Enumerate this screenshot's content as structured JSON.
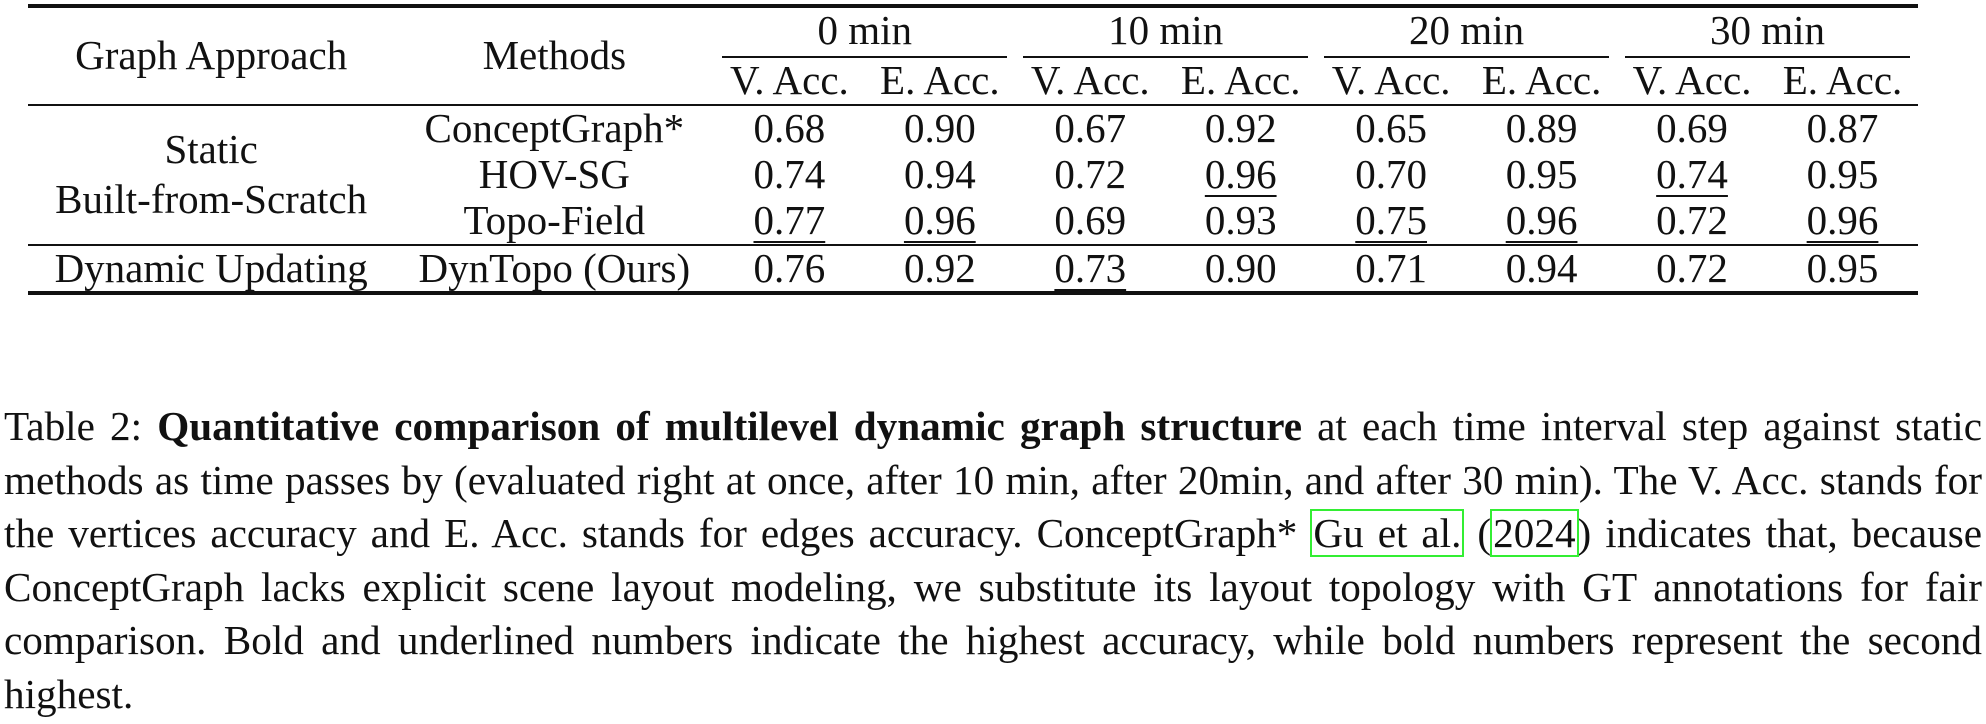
{
  "table": {
    "headers": {
      "graph_approach": "Graph Approach",
      "methods": "Methods",
      "groups": [
        "0 min",
        "10 min",
        "20 min",
        "30 min"
      ],
      "sub_v": "V. Acc.",
      "sub_e": "E. Acc."
    },
    "rows": [
      {
        "method": "ConceptGraph*",
        "cells": [
          {
            "v": "0.68",
            "s": "n"
          },
          {
            "v": "0.90",
            "s": "n"
          },
          {
            "v": "0.67",
            "s": "n"
          },
          {
            "v": "0.92",
            "s": "n"
          },
          {
            "v": "0.65",
            "s": "n"
          },
          {
            "v": "0.89",
            "s": "n"
          },
          {
            "v": "0.69",
            "s": "n"
          },
          {
            "v": "0.87",
            "s": "n"
          }
        ]
      },
      {
        "method": "HOV-SG",
        "cells": [
          {
            "v": "0.74",
            "s": "n"
          },
          {
            "v": "0.94",
            "s": "b"
          },
          {
            "v": "0.72",
            "s": "b"
          },
          {
            "v": "0.96",
            "s": "u"
          },
          {
            "v": "0.70",
            "s": "n"
          },
          {
            "v": "0.95",
            "s": "b"
          },
          {
            "v": "0.74",
            "s": "u"
          },
          {
            "v": "0.95",
            "s": "b"
          }
        ]
      },
      {
        "method": "Topo-Field",
        "cells": [
          {
            "v": "0.77",
            "s": "u"
          },
          {
            "v": "0.96",
            "s": "u"
          },
          {
            "v": "0.69",
            "s": "n"
          },
          {
            "v": "0.93",
            "s": "b"
          },
          {
            "v": "0.75",
            "s": "u"
          },
          {
            "v": "0.96",
            "s": "u"
          },
          {
            "v": "0.72",
            "s": "b"
          },
          {
            "v": "0.96",
            "s": "u"
          }
        ]
      },
      {
        "method": "DynTopo (Ours)",
        "cells": [
          {
            "v": "0.76",
            "s": "b"
          },
          {
            "v": "0.92",
            "s": "n"
          },
          {
            "v": "0.73",
            "s": "u"
          },
          {
            "v": "0.90",
            "s": "n"
          },
          {
            "v": "0.71",
            "s": "b"
          },
          {
            "v": "0.94",
            "s": "n"
          },
          {
            "v": "0.72",
            "s": "b"
          },
          {
            "v": "0.95",
            "s": "b"
          }
        ]
      }
    ],
    "approaches": {
      "static_line1": "Static",
      "static_line2": "Built-from-Scratch",
      "dynamic": "Dynamic Updating"
    }
  },
  "caption": {
    "label": "Table 2:",
    "title": "Quantitative comparison of multilevel dynamic graph structure",
    "text1": "at each time interval step against static methods as time passes by (evaluated right at once, after 10 min, after 20min, and after 30 min). The V. Acc. stands for the vertices accuracy and E. Acc. stands for edges accuracy. ConceptGraph*",
    "cite_author": "Gu et al.",
    "cite_year": "2024",
    "text2": "indicates that, because ConceptGraph lacks explicit scene layout modeling, we substitute its layout topology with GT annotations for fair comparison. Bold and underlined numbers indicate the highest accuracy, while bold numbers represent the second highest."
  }
}
